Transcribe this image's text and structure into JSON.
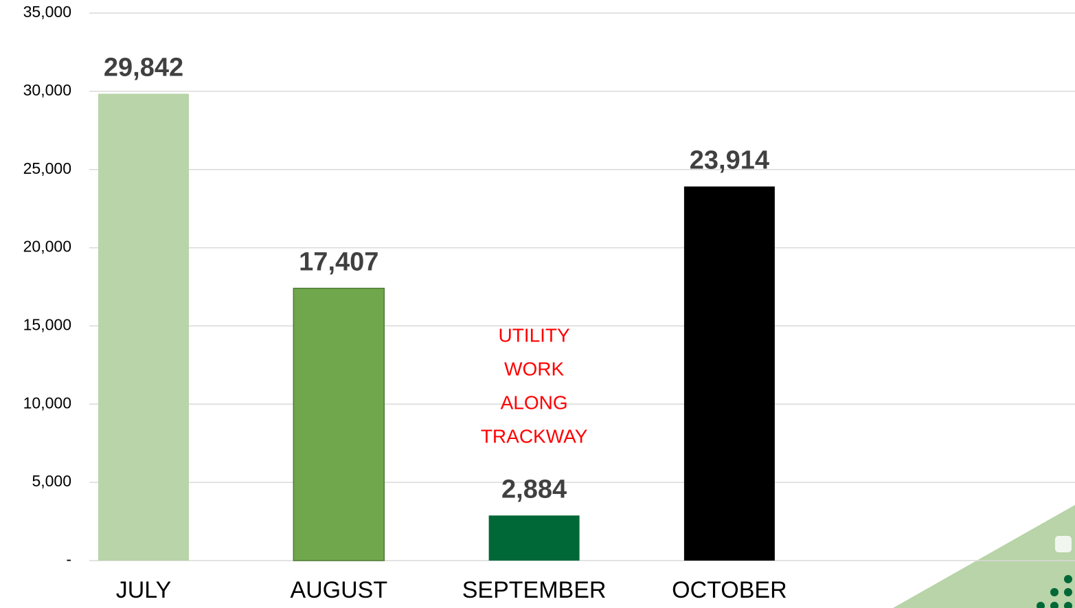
{
  "chart_data": {
    "type": "bar",
    "categories": [
      "JULY",
      "AUGUST",
      "SEPTEMBER",
      "OCTOBER"
    ],
    "values": [
      29842,
      17407,
      2884,
      23914
    ],
    "value_labels": [
      "29,842",
      "17,407",
      "2,884",
      "23,914"
    ],
    "colors": [
      "#b8d4a8",
      "#70a74c",
      "#006837",
      "#000000"
    ],
    "annotation": [
      "UTILITY",
      "WORK",
      "ALONG",
      "TRACKWAY"
    ],
    "ylim": [
      0,
      35000
    ],
    "yticks": [
      {
        "value": 0,
        "label": "-"
      },
      {
        "value": 5000,
        "label": "5,000"
      },
      {
        "value": 10000,
        "label": "10,000"
      },
      {
        "value": 15000,
        "label": "15,000"
      },
      {
        "value": 20000,
        "label": "20,000"
      },
      {
        "value": 25000,
        "label": "25,000"
      },
      {
        "value": 30000,
        "label": "30,000"
      },
      {
        "value": 35000,
        "label": "35,000"
      }
    ],
    "grid": true
  }
}
